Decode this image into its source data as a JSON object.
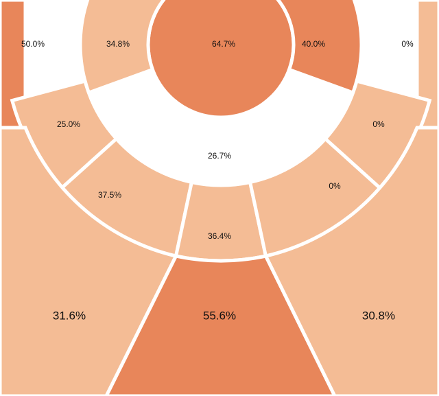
{
  "chart_data": {
    "type": "heatmap",
    "title": "",
    "legend": "none",
    "colors": {
      "high": "#e8865a",
      "low": "#f4bc95",
      "neutral": "#d9d9d9",
      "stroke": "#ffffff",
      "background": "#ffffff"
    },
    "zones": [
      {
        "id": "restricted-area",
        "value": "64.7%",
        "level": "high"
      },
      {
        "id": "paint-left",
        "value": "34.8%",
        "level": "low"
      },
      {
        "id": "paint-bottom",
        "value": "26.7%",
        "level": "neutral"
      },
      {
        "id": "paint-right",
        "value": "40.0%",
        "level": "high"
      },
      {
        "id": "corner-left",
        "value": "50.0%",
        "level": "high"
      },
      {
        "id": "corner-right",
        "value": "0%",
        "level": "low"
      },
      {
        "id": "midrange-left-baseline",
        "value": "25.0%",
        "level": "low"
      },
      {
        "id": "midrange-left-wing",
        "value": "37.5%",
        "level": "low"
      },
      {
        "id": "midrange-center",
        "value": "36.4%",
        "level": "low"
      },
      {
        "id": "midrange-right-wing",
        "value": "0%",
        "level": "low"
      },
      {
        "id": "midrange-right-baseline",
        "value": "0%",
        "level": "low"
      },
      {
        "id": "three-left-wing",
        "value": "31.6%",
        "level": "low"
      },
      {
        "id": "three-top-key",
        "value": "55.6%",
        "level": "high"
      },
      {
        "id": "three-right-wing",
        "value": "30.8%",
        "level": "low"
      }
    ]
  }
}
